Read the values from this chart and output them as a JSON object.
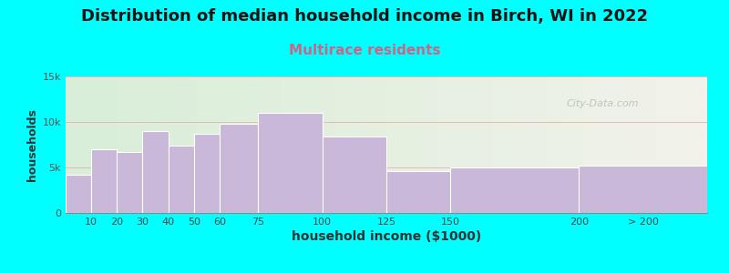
{
  "title": "Distribution of median household income in Birch, WI in 2022",
  "subtitle": "Multirace residents",
  "xlabel": "household income ($1000)",
  "ylabel": "households",
  "background_outer": "#00FFFF",
  "bar_color": "#c9b8d8",
  "bar_edge_color": "#ffffff",
  "title_fontsize": 13,
  "subtitle_fontsize": 11,
  "subtitle_color": "#cc6688",
  "xlabel_fontsize": 10,
  "ylabel_fontsize": 9,
  "left_edges": [
    0,
    10,
    20,
    30,
    40,
    50,
    60,
    75,
    100,
    125,
    150,
    200
  ],
  "right_edges": [
    10,
    20,
    30,
    40,
    50,
    60,
    75,
    100,
    125,
    150,
    200,
    250
  ],
  "values": [
    4200,
    7000,
    6700,
    9000,
    7400,
    8700,
    9800,
    11000,
    8400,
    4600,
    5000,
    5200
  ],
  "tick_positions": [
    10,
    20,
    30,
    40,
    50,
    60,
    75,
    100,
    125,
    150,
    200,
    225
  ],
  "tick_labels": [
    "10",
    "20",
    "30",
    "40",
    "50",
    "60",
    "75",
    "100",
    "125",
    "150",
    "200",
    "> 200"
  ],
  "ylim": [
    0,
    15000
  ],
  "yticks": [
    0,
    5000,
    10000,
    15000
  ],
  "ytick_labels": [
    "0",
    "5k",
    "10k",
    "15k"
  ],
  "watermark": "City-Data.com",
  "grid_color": "#e8a0a0",
  "bg_left_color": "#d8eed8",
  "bg_right_color": "#f0f0e8"
}
